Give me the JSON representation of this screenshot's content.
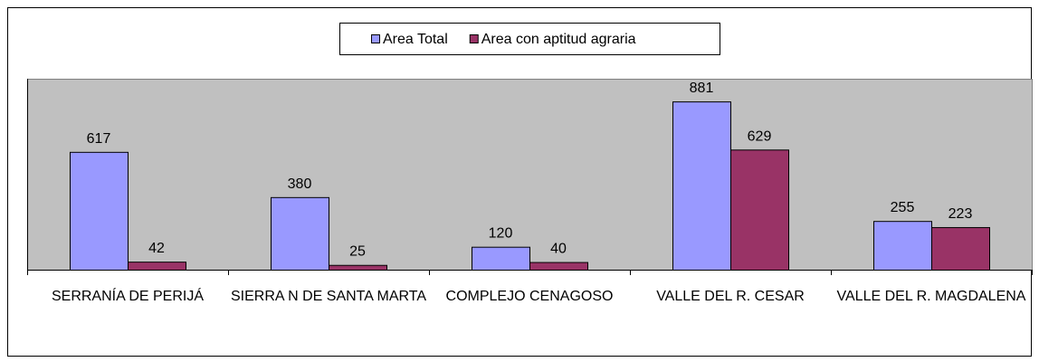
{
  "chart_data": {
    "type": "bar",
    "categories": [
      "SERRANÍA DE PERIJÁ",
      "SIERRA N DE SANTA MARTA",
      "COMPLEJO CENAGOSO",
      "VALLE DEL R. CESAR",
      "VALLE DEL R. MAGDALENA"
    ],
    "series": [
      {
        "name": "Area Total",
        "color": "#9999ff",
        "values": [
          617,
          380,
          120,
          881,
          255
        ]
      },
      {
        "name": "Area con aptitud agraria",
        "color": "#993366",
        "values": [
          42,
          25,
          40,
          629,
          223
        ]
      }
    ],
    "ylim": [
      0,
      1000
    ],
    "legend": "top"
  }
}
